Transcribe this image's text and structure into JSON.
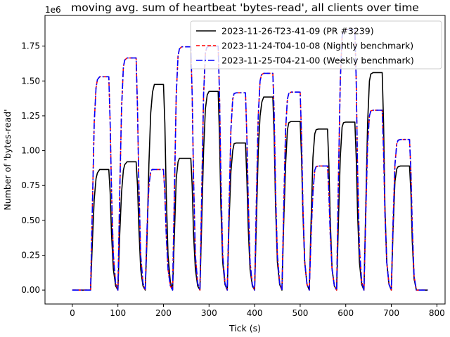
{
  "chart_data": {
    "type": "line",
    "title": "moving avg. sum of heartbeat 'bytes-read', all clients over time",
    "xlabel": "Tick (s)",
    "ylabel": "Number of 'bytes-read'",
    "offset_text": "1e6",
    "xlim": [
      -60,
      818
    ],
    "ylim": [
      -100000,
      1970000
    ],
    "xticks": [
      0,
      100,
      200,
      300,
      400,
      500,
      600,
      700,
      800
    ],
    "xtick_labels": [
      "0",
      "100",
      "200",
      "300",
      "400",
      "500",
      "600",
      "700",
      "800"
    ],
    "yticks": [
      0,
      250000,
      500000,
      750000,
      1000000,
      1250000,
      1500000,
      1750000
    ],
    "ytick_labels": [
      "0.00",
      "0.25",
      "0.50",
      "0.75",
      "1.00",
      "1.25",
      "1.50",
      "1.75"
    ],
    "legend_position": "top-right",
    "series": [
      {
        "name": "2023-11-26-T23-41-09 (PR #3239)",
        "color": "#000000",
        "dash": "solid",
        "x": [
          0,
          40,
          44,
          48,
          52,
          55,
          60,
          80,
          83,
          86,
          90,
          95,
          100,
          104,
          108,
          112,
          115,
          120,
          140,
          143,
          146,
          150,
          155,
          160,
          164,
          168,
          172,
          176,
          180,
          200,
          203,
          206,
          210,
          215,
          220,
          224,
          228,
          232,
          235,
          240,
          260,
          263,
          266,
          270,
          275,
          280,
          284,
          288,
          292,
          296,
          300,
          320,
          323,
          326,
          330,
          335,
          340,
          344,
          348,
          352,
          355,
          360,
          380,
          383,
          386,
          390,
          395,
          400,
          404,
          408,
          412,
          416,
          420,
          440,
          443,
          446,
          450,
          455,
          460,
          464,
          468,
          472,
          475,
          480,
          500,
          503,
          506,
          510,
          515,
          520,
          524,
          528,
          532,
          535,
          540,
          560,
          563,
          566,
          570,
          575,
          580,
          584,
          588,
          592,
          595,
          600,
          620,
          623,
          626,
          630,
          635,
          640,
          644,
          648,
          652,
          655,
          660,
          680,
          683,
          686,
          690,
          695,
          700,
          704,
          708,
          712,
          715,
          720,
          740,
          743,
          746,
          750,
          755,
          780
        ],
        "y": [
          0,
          0,
          350000,
          650000,
          800000,
          840000,
          865000,
          865000,
          700000,
          400000,
          150000,
          30000,
          0,
          400000,
          700000,
          860000,
          900000,
          920000,
          920000,
          750000,
          450000,
          150000,
          30000,
          0,
          380000,
          900000,
          1270000,
          1420000,
          1475000,
          1475000,
          1200000,
          700000,
          250000,
          60000,
          0,
          400000,
          800000,
          920000,
          945000,
          945000,
          945000,
          750000,
          400000,
          150000,
          30000,
          0,
          500000,
          1000000,
          1300000,
          1400000,
          1425000,
          1425000,
          1100000,
          600000,
          200000,
          40000,
          0,
          500000,
          850000,
          1000000,
          1050000,
          1055000,
          1055000,
          800000,
          450000,
          150000,
          30000,
          0,
          500000,
          1000000,
          1250000,
          1350000,
          1385000,
          1385000,
          1100000,
          600000,
          200000,
          40000,
          0,
          500000,
          900000,
          1150000,
          1200000,
          1210000,
          1210000,
          950000,
          550000,
          200000,
          40000,
          0,
          500000,
          950000,
          1120000,
          1150000,
          1155000,
          1155000,
          900000,
          500000,
          150000,
          30000,
          0,
          500000,
          950000,
          1170000,
          1200000,
          1205000,
          1205000,
          950000,
          550000,
          200000,
          40000,
          0,
          600000,
          1200000,
          1500000,
          1550000,
          1560000,
          1560000,
          1200000,
          600000,
          200000,
          40000,
          0,
          450000,
          780000,
          870000,
          885000,
          890000,
          890000,
          700000,
          350000,
          80000,
          0,
          0
        ]
      },
      {
        "name": "2023-11-24-T04-10-08 (Nightly benchmark)",
        "color": "#ff0000",
        "dash": "5,3",
        "x": [
          0,
          40,
          44,
          48,
          52,
          55,
          60,
          80,
          83,
          86,
          90,
          95,
          100,
          104,
          108,
          112,
          115,
          120,
          140,
          143,
          146,
          150,
          155,
          160,
          164,
          168,
          172,
          175,
          180,
          200,
          203,
          206,
          210,
          215,
          220,
          224,
          228,
          232,
          235,
          240,
          260,
          263,
          266,
          270,
          275,
          280,
          284,
          288,
          292,
          295,
          300,
          320,
          323,
          326,
          330,
          335,
          340,
          344,
          348,
          352,
          355,
          360,
          380,
          383,
          386,
          390,
          395,
          400,
          404,
          408,
          412,
          415,
          420,
          440,
          443,
          446,
          450,
          455,
          460,
          464,
          468,
          472,
          475,
          480,
          500,
          503,
          506,
          510,
          515,
          520,
          524,
          528,
          532,
          535,
          540,
          560,
          563,
          566,
          570,
          575,
          580,
          584,
          588,
          592,
          595,
          600,
          620,
          623,
          626,
          630,
          635,
          640,
          644,
          648,
          652,
          655,
          660,
          680,
          683,
          686,
          690,
          695,
          700,
          704,
          708,
          712,
          715,
          720,
          740,
          743,
          746,
          750,
          755,
          780
        ],
        "y": [
          0,
          0,
          600000,
          1200000,
          1450000,
          1510000,
          1530000,
          1530000,
          1200000,
          700000,
          250000,
          50000,
          0,
          700000,
          1300000,
          1600000,
          1650000,
          1665000,
          1665000,
          1300000,
          750000,
          250000,
          50000,
          0,
          450000,
          750000,
          850000,
          865000,
          865000,
          865000,
          700000,
          400000,
          150000,
          30000,
          0,
          700000,
          1400000,
          1680000,
          1730000,
          1745000,
          1745000,
          1400000,
          800000,
          250000,
          50000,
          0,
          700000,
          1400000,
          1700000,
          1740000,
          1750000,
          1750000,
          1400000,
          800000,
          250000,
          50000,
          0,
          600000,
          1150000,
          1370000,
          1410000,
          1415000,
          1415000,
          1100000,
          650000,
          200000,
          40000,
          0,
          650000,
          1250000,
          1500000,
          1545000,
          1555000,
          1555000,
          1250000,
          700000,
          250000,
          50000,
          0,
          600000,
          1150000,
          1370000,
          1410000,
          1420000,
          1420000,
          1100000,
          600000,
          200000,
          40000,
          0,
          400000,
          700000,
          860000,
          885000,
          890000,
          890000,
          700000,
          400000,
          150000,
          30000,
          0,
          800000,
          1500000,
          1820000,
          1860000,
          1870000,
          1870000,
          1500000,
          850000,
          300000,
          60000,
          0,
          550000,
          1050000,
          1250000,
          1285000,
          1290000,
          1290000,
          1000000,
          550000,
          200000,
          40000,
          0,
          500000,
          900000,
          1050000,
          1075000,
          1080000,
          1080000,
          850000,
          450000,
          100000,
          0,
          0
        ]
      },
      {
        "name": "2023-11-25-T04-21-00 (Weekly benchmark)",
        "color": "#0000ff",
        "dash": "9,3,2,3",
        "x": [
          0,
          40,
          44,
          48,
          52,
          55,
          60,
          80,
          83,
          86,
          90,
          95,
          100,
          104,
          108,
          112,
          115,
          120,
          140,
          143,
          146,
          150,
          155,
          160,
          164,
          168,
          172,
          175,
          180,
          200,
          203,
          206,
          210,
          215,
          220,
          224,
          228,
          232,
          235,
          240,
          260,
          263,
          266,
          270,
          275,
          280,
          284,
          288,
          292,
          295,
          300,
          320,
          323,
          326,
          330,
          335,
          340,
          344,
          348,
          352,
          355,
          360,
          380,
          383,
          386,
          390,
          395,
          400,
          404,
          408,
          412,
          415,
          420,
          440,
          443,
          446,
          450,
          455,
          460,
          464,
          468,
          472,
          475,
          480,
          500,
          503,
          506,
          510,
          515,
          520,
          524,
          528,
          532,
          535,
          540,
          560,
          563,
          566,
          570,
          575,
          580,
          584,
          588,
          592,
          595,
          600,
          620,
          623,
          626,
          630,
          635,
          640,
          644,
          648,
          652,
          655,
          660,
          680,
          683,
          686,
          690,
          695,
          700,
          704,
          708,
          712,
          715,
          720,
          740,
          743,
          746,
          750,
          755,
          780
        ],
        "y": [
          0,
          0,
          600000,
          1200000,
          1450000,
          1510000,
          1530000,
          1530000,
          1200000,
          700000,
          250000,
          50000,
          0,
          700000,
          1300000,
          1600000,
          1650000,
          1665000,
          1665000,
          1300000,
          750000,
          250000,
          50000,
          0,
          450000,
          750000,
          850000,
          865000,
          865000,
          865000,
          700000,
          400000,
          150000,
          30000,
          0,
          700000,
          1400000,
          1680000,
          1730000,
          1745000,
          1745000,
          1400000,
          800000,
          250000,
          50000,
          0,
          700000,
          1400000,
          1700000,
          1740000,
          1750000,
          1750000,
          1400000,
          800000,
          250000,
          50000,
          0,
          600000,
          1150000,
          1370000,
          1410000,
          1415000,
          1415000,
          1100000,
          650000,
          200000,
          40000,
          0,
          650000,
          1250000,
          1500000,
          1545000,
          1555000,
          1555000,
          1250000,
          700000,
          250000,
          50000,
          0,
          600000,
          1150000,
          1370000,
          1410000,
          1420000,
          1420000,
          1100000,
          600000,
          200000,
          40000,
          0,
          400000,
          700000,
          860000,
          885000,
          890000,
          890000,
          700000,
          400000,
          150000,
          30000,
          0,
          800000,
          1500000,
          1820000,
          1860000,
          1870000,
          1870000,
          1500000,
          850000,
          300000,
          60000,
          0,
          550000,
          1050000,
          1250000,
          1285000,
          1290000,
          1290000,
          1000000,
          550000,
          200000,
          40000,
          0,
          500000,
          900000,
          1050000,
          1075000,
          1080000,
          1080000,
          850000,
          450000,
          100000,
          0,
          0
        ]
      }
    ]
  }
}
